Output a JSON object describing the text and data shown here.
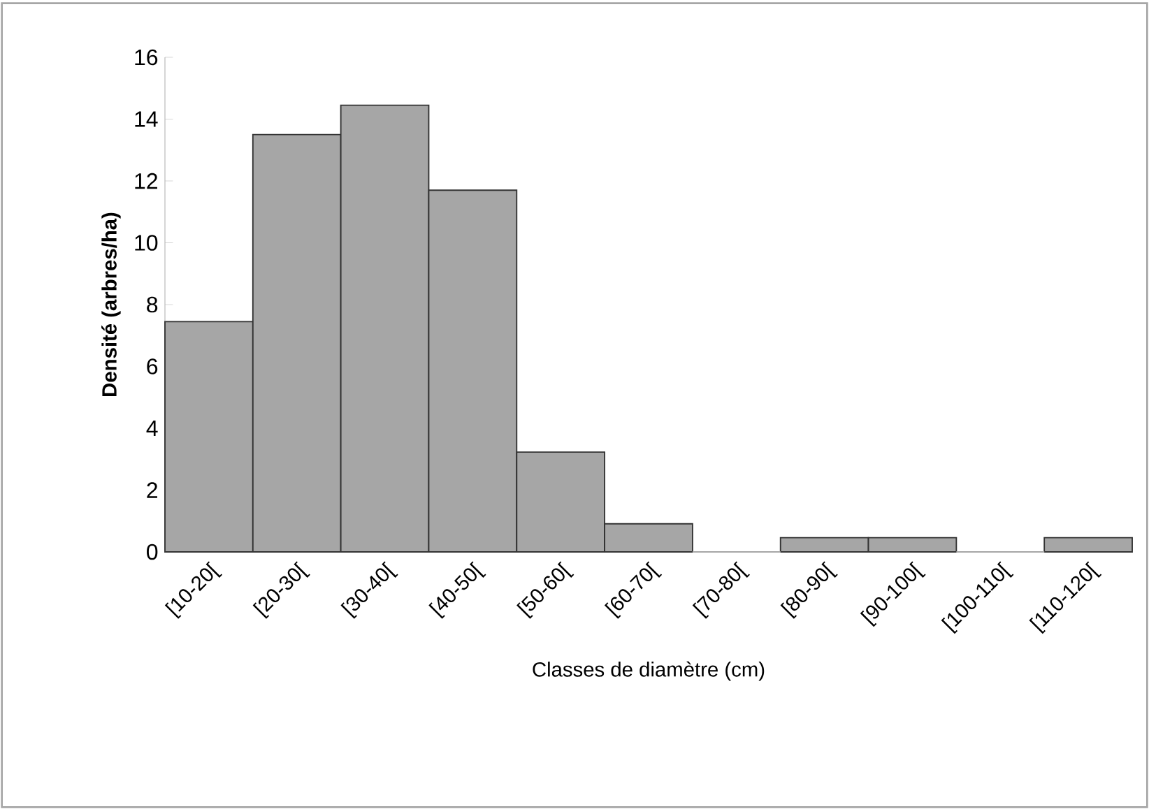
{
  "chart_data": {
    "type": "bar",
    "xlabel": "Classes de diamètre (cm)",
    "ylabel": "**Densité (arbres/ha)**",
    "categories": [
      "[10-20[",
      "[20-30[",
      "[30-40[",
      "[40-50[",
      "[50-60[",
      "[60-70[",
      "[70-80[",
      "[80-90[",
      "[90-100[",
      "[100-110[",
      "[110-120["
    ],
    "values": [
      7.45,
      13.5,
      14.45,
      11.7,
      3.23,
      0.91,
      0,
      0.46,
      0.46,
      0,
      0.46
    ],
    "color": "#a6a6a6",
    "ylim": [
      0,
      16
    ],
    "yticks": [
      0,
      2,
      4,
      6,
      8,
      10,
      12,
      14,
      16
    ],
    "grid": false
  }
}
